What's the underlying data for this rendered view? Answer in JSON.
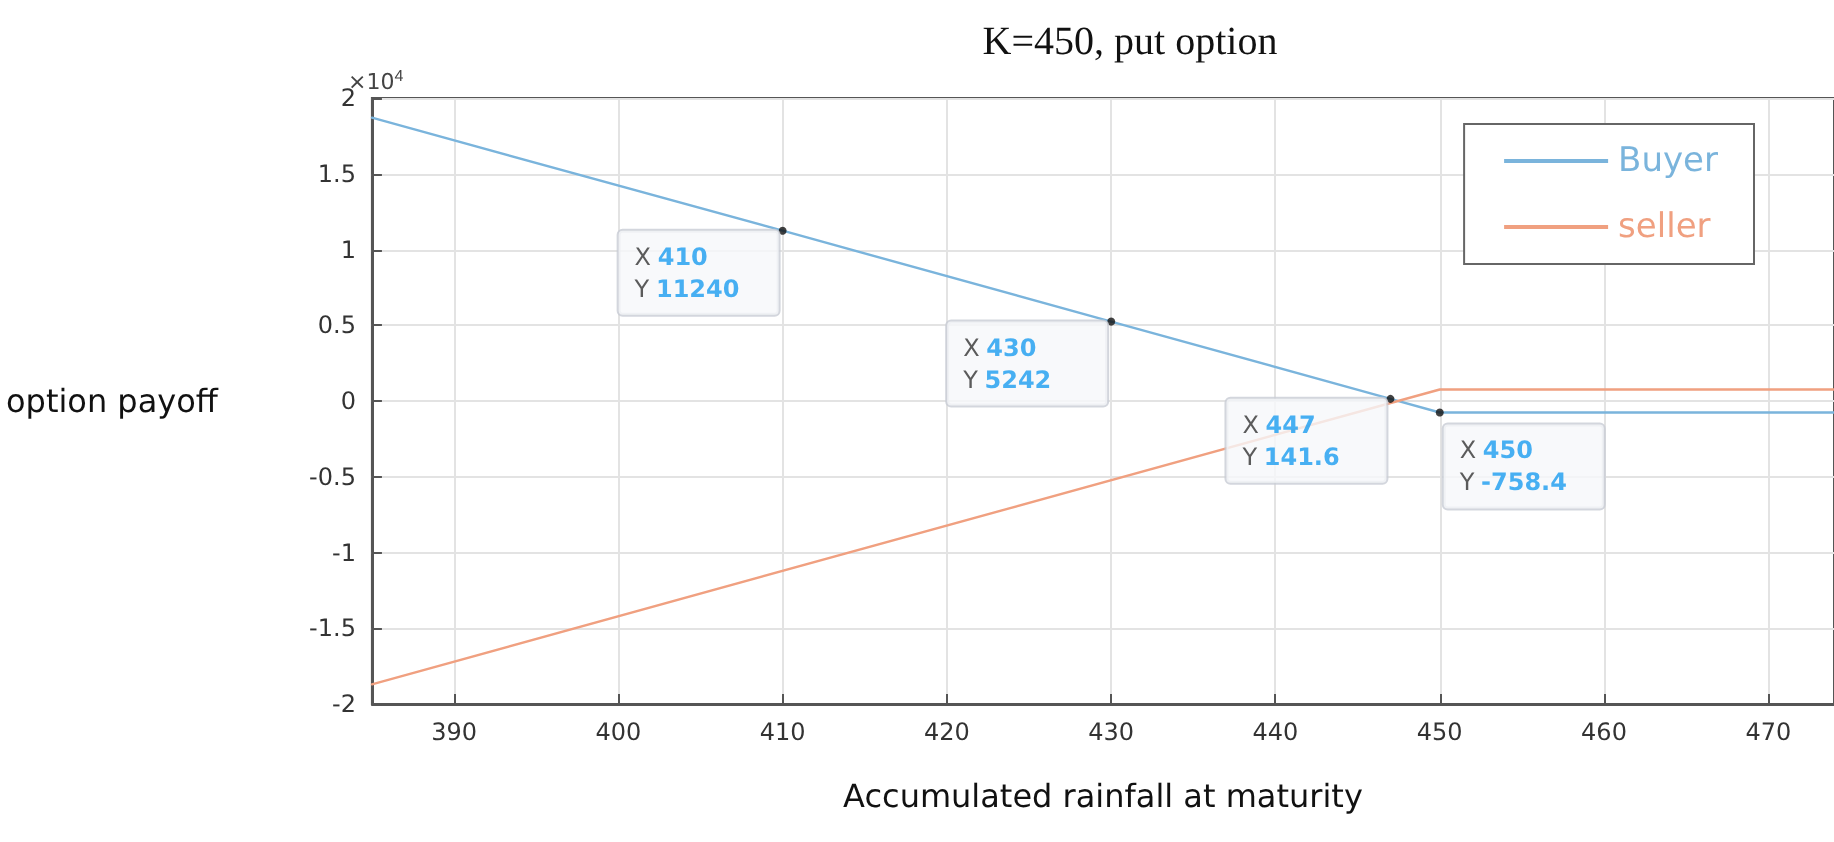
{
  "chart_data": {
    "type": "line",
    "title": "K=450, put option",
    "xlabel": "Accumulated rainfall at maturity",
    "ylabel": "option payoff",
    "series": [
      {
        "name": "Buyer",
        "color": "#7ab4dc",
        "x": [
          385,
          410,
          430,
          447,
          450,
          474
        ],
        "values": [
          1.87,
          1.124,
          0.5242,
          0.01416,
          -0.07584,
          -0.07584
        ]
      },
      {
        "name": "seller",
        "color": "#f0a080",
        "x": [
          385,
          450,
          474
        ],
        "values": [
          -1.87,
          0.07584,
          0.07584
        ]
      }
    ],
    "xlim": [
      385,
      474
    ],
    "xticks": [
      390,
      400,
      410,
      420,
      430,
      440,
      450,
      460,
      470
    ],
    "ylim": [
      -2,
      2
    ],
    "yticks": [
      -2,
      -1.5,
      -1,
      -0.5,
      0,
      0.5,
      1,
      1.5,
      2
    ],
    "annotations": [
      "×10$^{4}$",
      {
        "text": "X 410\nY 11240",
        "x": 410,
        "y": 1.124
      },
      {
        "text": "X 430\nY 5242",
        "x": 430,
        "y": 0.5242
      },
      {
        "text": "X 447\nY 141.6",
        "x": 447,
        "y": 0.01416
      },
      {
        "text": "X 450\nY -758.4",
        "x": 450,
        "y": -0.07584
      }
    ],
    "grid": true,
    "legend": "top right",
    "line_style": "solid"
  }
}
